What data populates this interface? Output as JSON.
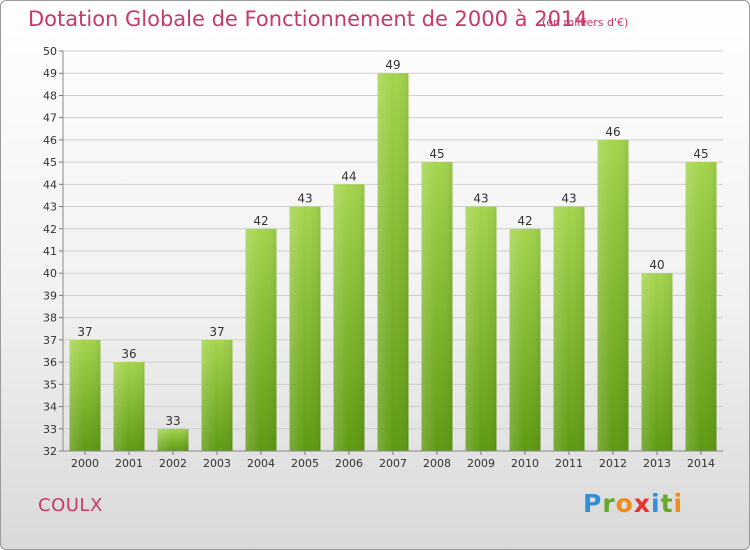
{
  "title": "Dotation Globale de Fonctionnement de 2000 à 2014",
  "unit_note": "(en milliers d'€)",
  "commune": "COULX",
  "logo": {
    "letters": [
      "P",
      "r",
      "o",
      "x",
      "i",
      "t",
      "i"
    ],
    "colors": [
      "#2f8fd8",
      "#6aa829",
      "#f08a1c",
      "#e8322c",
      "#2f8fd8",
      "#6aa829",
      "#f08a1c"
    ]
  },
  "colors": {
    "text_accent": "#c8386a",
    "bar_top": "#a4d44c",
    "bar_bottom": "#5e9a12",
    "grid": "#cfcfcf"
  },
  "chart_data": {
    "type": "bar",
    "title": "Dotation Globale de Fonctionnement de 2000 à 2014",
    "ylabel": "(en milliers d'€)",
    "categories": [
      "2000",
      "2001",
      "2002",
      "2003",
      "2004",
      "2005",
      "2006",
      "2007",
      "2008",
      "2009",
      "2010",
      "2011",
      "2012",
      "2013",
      "2014"
    ],
    "values": [
      37,
      36,
      33,
      37,
      42,
      43,
      44,
      49,
      45,
      43,
      42,
      43,
      46,
      40,
      45
    ],
    "ylim": [
      32,
      50
    ],
    "yticks": [
      32,
      33,
      34,
      35,
      36,
      37,
      38,
      39,
      40,
      41,
      42,
      43,
      44,
      45,
      46,
      47,
      48,
      49,
      50
    ],
    "grid": true,
    "legend": "none"
  }
}
